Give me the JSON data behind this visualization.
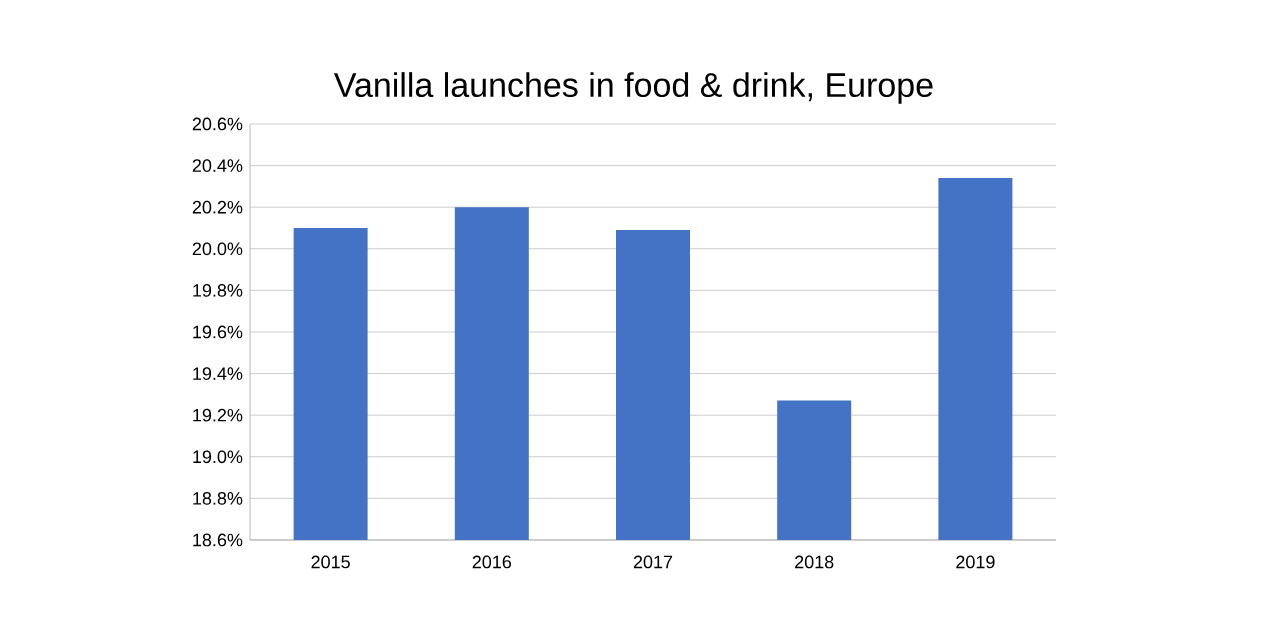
{
  "chart_data": {
    "type": "bar",
    "title": "Vanilla launches in food & drink, Europe",
    "categories": [
      "2015",
      "2016",
      "2017",
      "2018",
      "2019"
    ],
    "values": [
      20.1,
      20.2,
      20.09,
      19.27,
      20.34
    ],
    "color": "#4472c4",
    "ylim": [
      18.6,
      20.6
    ],
    "yticks": [
      {
        "value": 18.6,
        "label": "18.6%"
      },
      {
        "value": 18.8,
        "label": "18.8%"
      },
      {
        "value": 19.0,
        "label": "19.0%"
      },
      {
        "value": 19.2,
        "label": "19.2%"
      },
      {
        "value": 19.4,
        "label": "19.4%"
      },
      {
        "value": 19.6,
        "label": "19.6%"
      },
      {
        "value": 19.8,
        "label": "19.8%"
      },
      {
        "value": 20.0,
        "label": "20.0%"
      },
      {
        "value": 20.2,
        "label": "20.2%"
      },
      {
        "value": 20.4,
        "label": "20.4%"
      },
      {
        "value": 20.6,
        "label": "20.6%"
      }
    ],
    "grid": "y"
  }
}
